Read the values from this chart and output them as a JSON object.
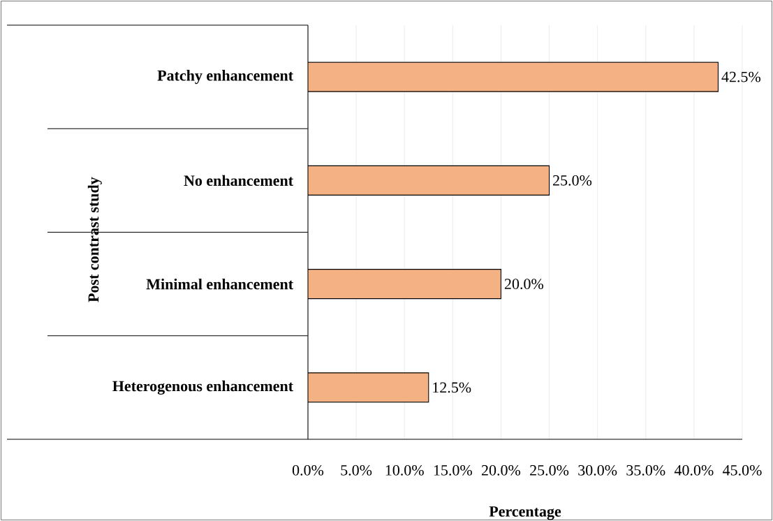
{
  "chart_data": {
    "type": "bar",
    "orientation": "horizontal",
    "ylabel": "Post contrast study",
    "xlabel": "Percentage",
    "categories": [
      "Patchy enhancement",
      "No enhancement",
      "Minimal enhancement",
      "Heterogenous enhancement"
    ],
    "values": [
      42.5,
      25.0,
      20.0,
      12.5
    ],
    "value_labels": [
      "42.5%",
      "25.0%",
      "20.0%",
      "12.5%"
    ],
    "color": "#f4b183",
    "xlim": [
      0,
      45
    ],
    "xticks": [
      {
        "value": 0,
        "label": "0.0%"
      },
      {
        "value": 5,
        "label": "5.0%"
      },
      {
        "value": 10,
        "label": "10.0%"
      },
      {
        "value": 15,
        "label": "15.0%"
      },
      {
        "value": 20,
        "label": "20.0%"
      },
      {
        "value": 25,
        "label": "25.0%"
      },
      {
        "value": 30,
        "label": "30.0%"
      },
      {
        "value": 35,
        "label": "35.0%"
      },
      {
        "value": 40,
        "label": "40.0%"
      },
      {
        "value": 45,
        "label": "45.0%"
      }
    ],
    "grid": "x"
  }
}
